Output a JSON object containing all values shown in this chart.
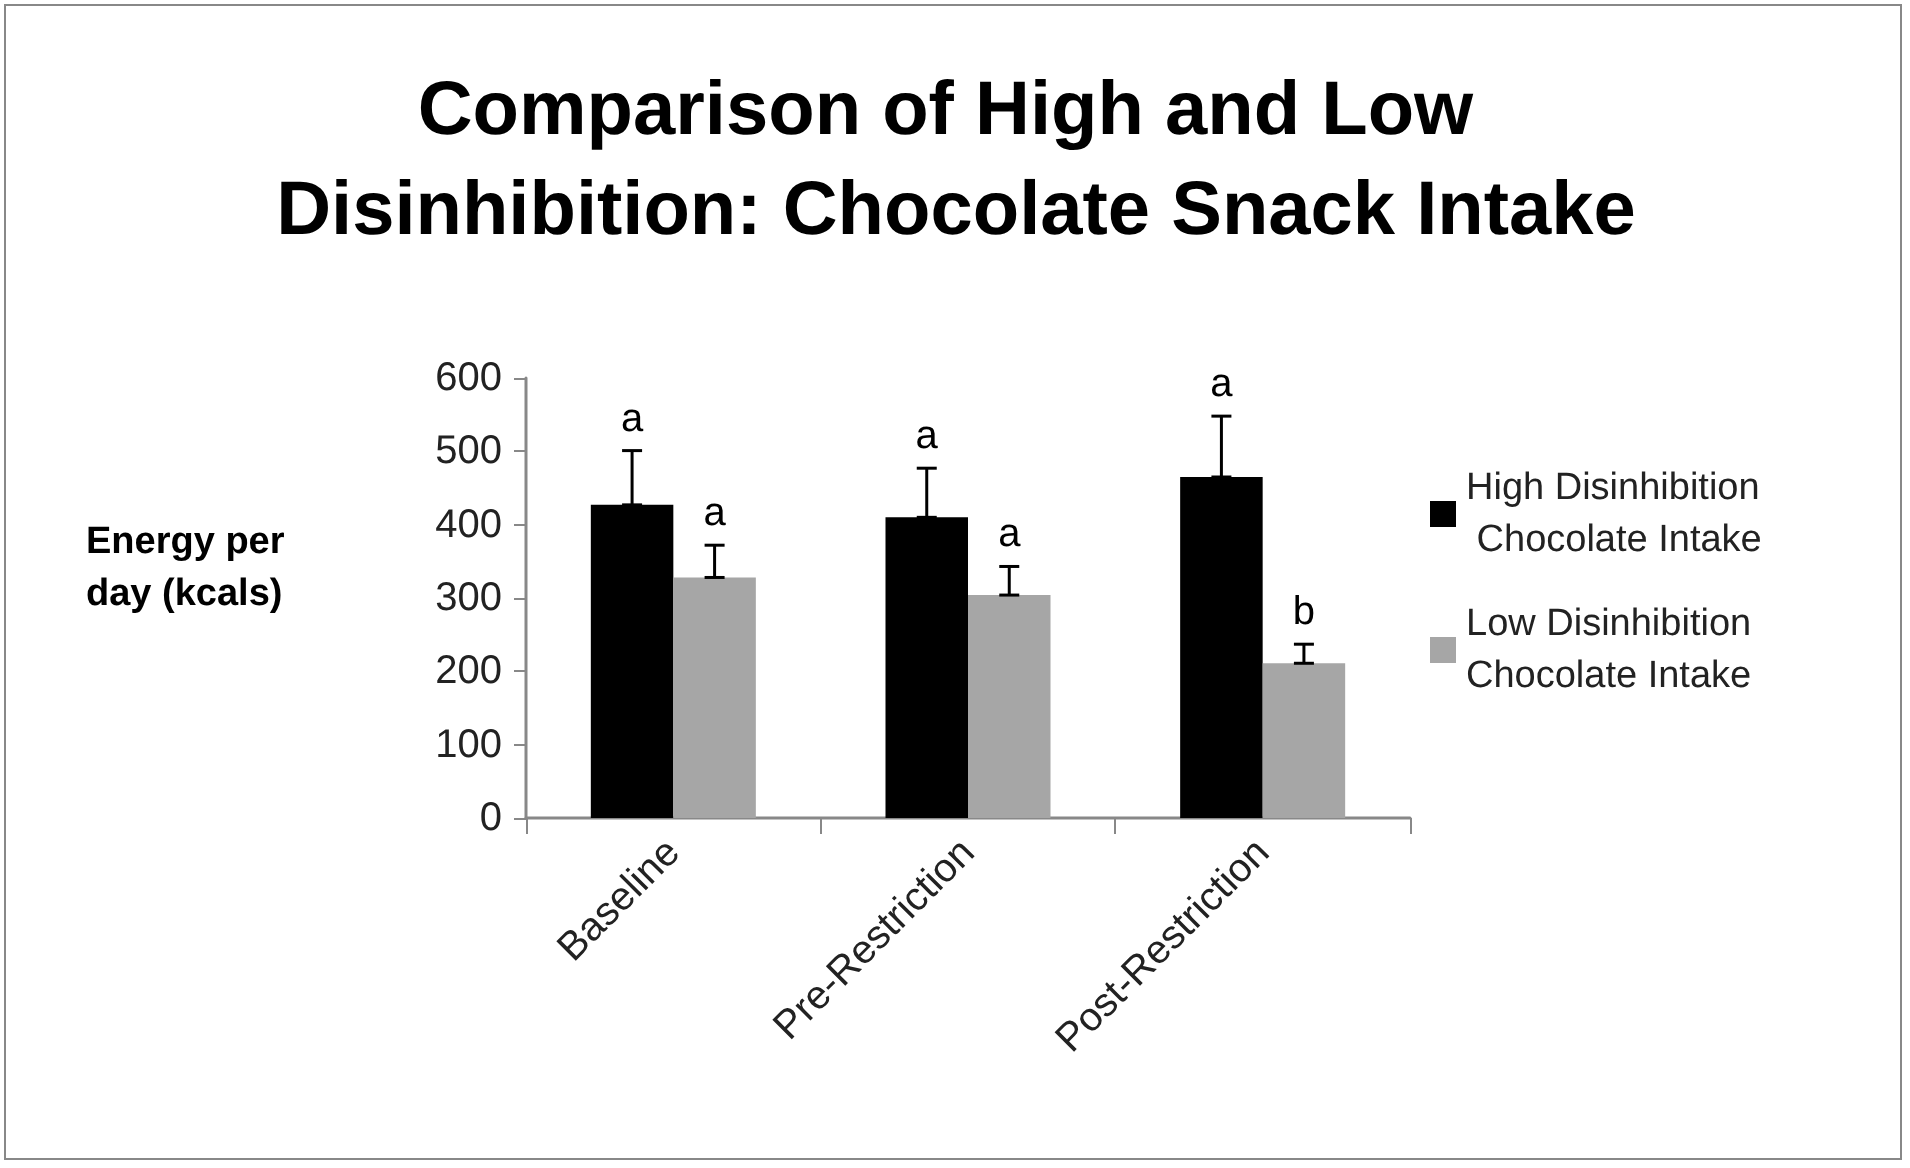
{
  "chart_data": {
    "type": "bar",
    "title": "Comparison of High and Low Disinhibition: Chocolate Snack Intake",
    "ylabel": "Energy per day (kcals)",
    "categories": [
      "Baseline",
      "Pre-Restriction",
      "Post-Restriction"
    ],
    "series": [
      {
        "name": "High Disinhibition Chocolate Intake",
        "color": "#000000",
        "values": [
          427,
          410,
          465
        ],
        "errors": [
          [
            427,
            501
          ],
          [
            410,
            477
          ],
          [
            465,
            548
          ]
        ]
      },
      {
        "name": "Low Disinhibition Chocolate Intake",
        "color": "#a6a6a6",
        "values": [
          328,
          304,
          211
        ],
        "errors": [
          [
            328,
            372
          ],
          [
            304,
            343
          ],
          [
            211,
            237
          ]
        ]
      }
    ],
    "annotations": [
      "a",
      "a",
      "a",
      "a",
      "a",
      "b"
    ],
    "ylim": [
      0,
      600
    ],
    "yticks": [
      0,
      100,
      200,
      300,
      400,
      500,
      600
    ],
    "grid": false,
    "legend": "right"
  }
}
